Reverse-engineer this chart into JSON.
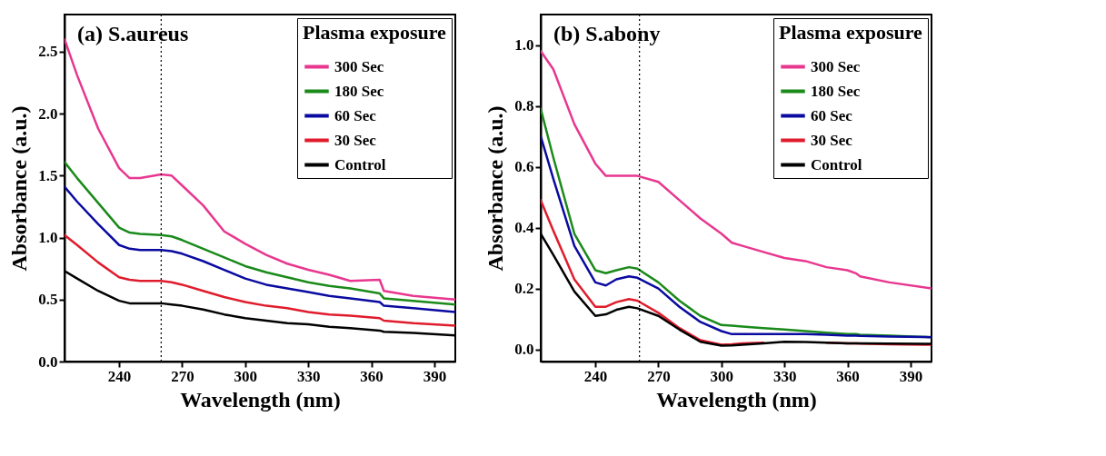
{
  "chart_data": [
    {
      "type": "line",
      "annotations": [
        "(a) S.aureus"
      ],
      "xlabel": "Wavelength (nm)",
      "ylabel": "Absorbance  (a.u.)",
      "legend_title": "Plasma exposure",
      "legend": "top right",
      "grid": false,
      "line_style": "solid",
      "xlim": [
        214,
        400
      ],
      "ylim": [
        0,
        2.8
      ],
      "xticks": [
        240,
        270,
        300,
        330,
        360,
        390
      ],
      "yticks": [
        {
          "value": 0,
          "label": "0.0"
        },
        0.5,
        {
          "value": 1,
          "label": "1.0"
        },
        1.5,
        {
          "value": 2,
          "label": "2.0"
        },
        2.5
      ],
      "x": [
        214,
        220,
        230,
        240,
        245,
        250,
        260,
        265,
        270,
        280,
        290,
        300,
        310,
        320,
        330,
        340,
        350,
        364,
        366,
        380,
        400
      ],
      "ref_lines": [
        {
          "axis": "x",
          "value": 260,
          "label": null,
          "color": "#000000",
          "line_style": "dotted"
        }
      ],
      "series": [
        {
          "name": "300 Sec",
          "color": "#e8378f",
          "values": [
            2.6,
            2.31,
            1.88,
            1.56,
            1.48,
            1.48,
            1.51,
            1.5,
            1.42,
            1.26,
            1.05,
            0.95,
            0.86,
            0.79,
            0.74,
            0.7,
            0.65,
            0.66,
            0.57,
            0.53,
            0.5
          ]
        },
        {
          "name": "180 Sec",
          "color": "#1a8a1a",
          "values": [
            1.61,
            1.48,
            1.28,
            1.08,
            1.04,
            1.03,
            1.02,
            1.01,
            0.98,
            0.91,
            0.84,
            0.77,
            0.72,
            0.68,
            0.64,
            0.61,
            0.59,
            0.55,
            0.51,
            0.49,
            0.46
          ]
        },
        {
          "name": "60 Sec",
          "color": "#0a0aa0",
          "values": [
            1.41,
            1.29,
            1.11,
            0.94,
            0.91,
            0.9,
            0.9,
            0.89,
            0.87,
            0.81,
            0.74,
            0.67,
            0.62,
            0.59,
            0.56,
            0.53,
            0.51,
            0.48,
            0.45,
            0.43,
            0.4
          ]
        },
        {
          "name": "30 Sec",
          "color": "#e01c2c",
          "values": [
            1.02,
            0.94,
            0.8,
            0.68,
            0.66,
            0.65,
            0.65,
            0.64,
            0.62,
            0.57,
            0.52,
            0.48,
            0.45,
            0.43,
            0.4,
            0.38,
            0.37,
            0.35,
            0.33,
            0.31,
            0.29
          ]
        },
        {
          "name": "Control",
          "color": "#000000",
          "values": [
            0.73,
            0.67,
            0.57,
            0.49,
            0.47,
            0.47,
            0.47,
            0.46,
            0.45,
            0.42,
            0.38,
            0.35,
            0.33,
            0.31,
            0.3,
            0.28,
            0.27,
            0.25,
            0.24,
            0.23,
            0.21
          ]
        }
      ]
    },
    {
      "type": "line",
      "annotations": [
        "(b) S.abony"
      ],
      "xlabel": "Wavelength (nm)",
      "ylabel": "Absorbance (a.u.)",
      "legend_title": "Plasma exposure",
      "legend": "top right",
      "grid": false,
      "line_style": "solid",
      "xlim": [
        214,
        400
      ],
      "ylim": [
        -0.04,
        1.1
      ],
      "xticks": [
        240,
        270,
        300,
        330,
        360,
        390
      ],
      "yticks": [
        {
          "value": 0,
          "label": "0.0"
        },
        0.2,
        0.4,
        0.6,
        0.8,
        {
          "value": 1,
          "label": "1.0"
        }
      ],
      "x": [
        214,
        220,
        230,
        240,
        245,
        250,
        256,
        260,
        270,
        280,
        290,
        300,
        305,
        310,
        320,
        330,
        340,
        350,
        360,
        364,
        366,
        380,
        400
      ],
      "ref_lines": [
        {
          "axis": "x",
          "value": 261,
          "label": null,
          "color": "#000000",
          "line_style": "dotted"
        }
      ],
      "series": [
        {
          "name": "300 Sec",
          "color": "#e8378f",
          "values": [
            0.98,
            0.92,
            0.74,
            0.61,
            0.57,
            0.57,
            0.57,
            0.57,
            0.55,
            0.49,
            0.43,
            0.38,
            0.35,
            0.34,
            0.32,
            0.3,
            0.29,
            0.27,
            0.26,
            0.25,
            0.24,
            0.22,
            0.2
          ]
        },
        {
          "name": "180 Sec",
          "color": "#1a8a1a",
          "values": [
            0.79,
            0.63,
            0.38,
            0.26,
            0.25,
            0.26,
            0.27,
            0.265,
            0.22,
            0.16,
            0.11,
            0.08,
            0.078,
            0.075,
            0.07,
            0.065,
            0.06,
            0.055,
            0.05,
            0.05,
            0.048,
            0.045,
            0.04
          ]
        },
        {
          "name": "60 Sec",
          "color": "#0a0aa0",
          "values": [
            0.7,
            0.56,
            0.34,
            0.22,
            0.21,
            0.23,
            0.24,
            0.235,
            0.2,
            0.14,
            0.09,
            0.06,
            0.05,
            0.05,
            0.05,
            0.05,
            0.05,
            0.048,
            0.045,
            0.045,
            0.044,
            0.042,
            0.04
          ]
        },
        {
          "name": "30 Sec",
          "color": "#e01c2c",
          "values": [
            0.49,
            0.39,
            0.23,
            0.14,
            0.14,
            0.155,
            0.165,
            0.16,
            0.12,
            0.07,
            0.03,
            0.015,
            0.017,
            0.02,
            0.022,
            null,
            null,
            0.022,
            0.02,
            0.02,
            0.019,
            0.017,
            0.015
          ]
        },
        {
          "name": "Control",
          "color": "#000000",
          "values": [
            0.38,
            0.31,
            0.19,
            0.11,
            0.115,
            0.13,
            0.14,
            0.135,
            0.11,
            0.065,
            0.025,
            0.012,
            0.013,
            0.015,
            0.02,
            0.025,
            0.024,
            0.022,
            0.02,
            0.02,
            0.02,
            0.019,
            0.018
          ]
        }
      ]
    }
  ]
}
